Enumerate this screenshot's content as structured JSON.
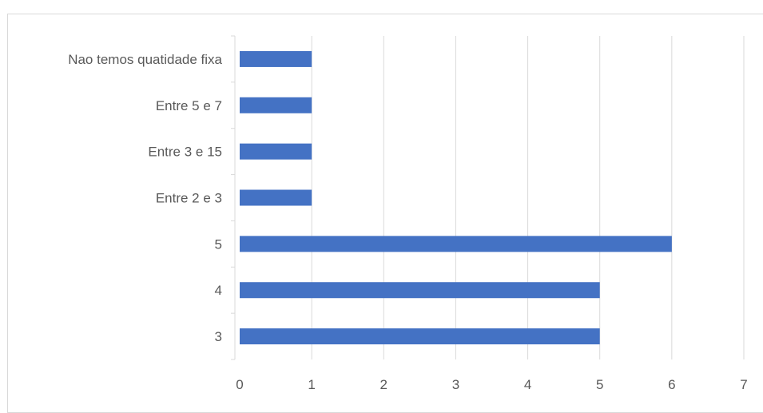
{
  "chart_data": {
    "type": "bar",
    "orientation": "horizontal",
    "categories": [
      "Nao temos quatidade fixa",
      "Entre 5 e 7",
      "Entre 3 e 15",
      "Entre 2 e 3",
      "5",
      "4",
      "3"
    ],
    "values": [
      1,
      1,
      1,
      1,
      6,
      5,
      5
    ],
    "x_ticks": [
      "0",
      "1",
      "2",
      "3",
      "4",
      "5",
      "6",
      "7"
    ],
    "xlim": [
      0,
      7
    ],
    "title": "",
    "xlabel": "",
    "ylabel": "",
    "grid": "vertical",
    "legend": "none",
    "colors": {
      "bar": "#4472c4",
      "grid": "#d9d9d9",
      "text": "#595959"
    }
  }
}
